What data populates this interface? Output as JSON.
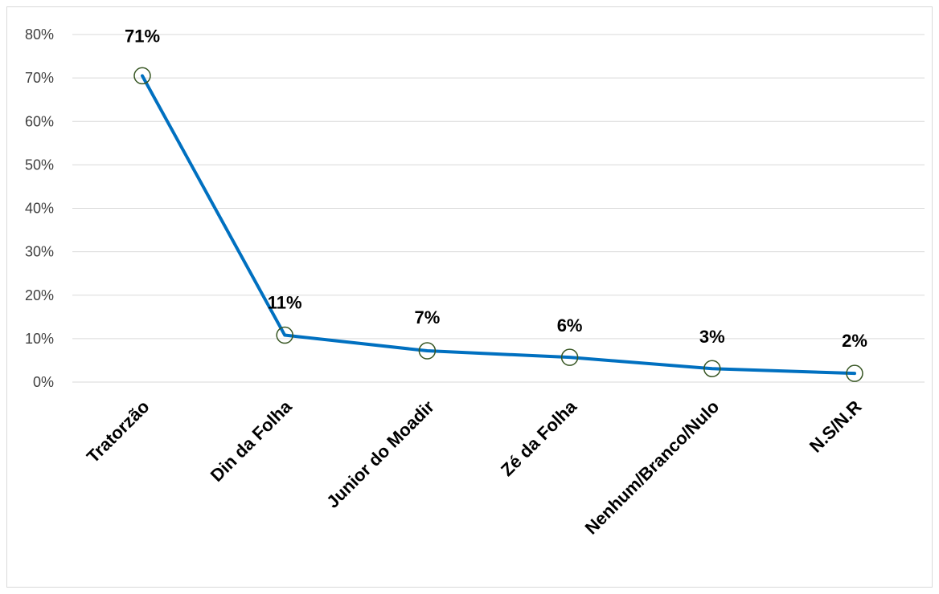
{
  "chart_data": {
    "type": "line",
    "categories": [
      "Tratorzão",
      "Din da Folha",
      "Junior do Moadir",
      "Zé da Folha",
      "Nenhum/Branco/Nulo",
      "N.S/N.R"
    ],
    "values": [
      70.5,
      10.8,
      7.2,
      5.7,
      3.1,
      2.0
    ],
    "data_labels": [
      "71%",
      "11%",
      "7%",
      "6%",
      "3%",
      "2%"
    ],
    "y_ticks": [
      0,
      10,
      20,
      30,
      40,
      50,
      60,
      70,
      80
    ],
    "y_tick_labels": [
      "0%",
      "10%",
      "20%",
      "30%",
      "40%",
      "50%",
      "60%",
      "70%",
      "80%"
    ],
    "ylim": [
      0,
      80
    ],
    "grid": "horizontal",
    "legend": "none",
    "colors": {
      "line": "#0070C0",
      "marker_stroke": "#375623",
      "grid": "#d9d9d9"
    }
  }
}
